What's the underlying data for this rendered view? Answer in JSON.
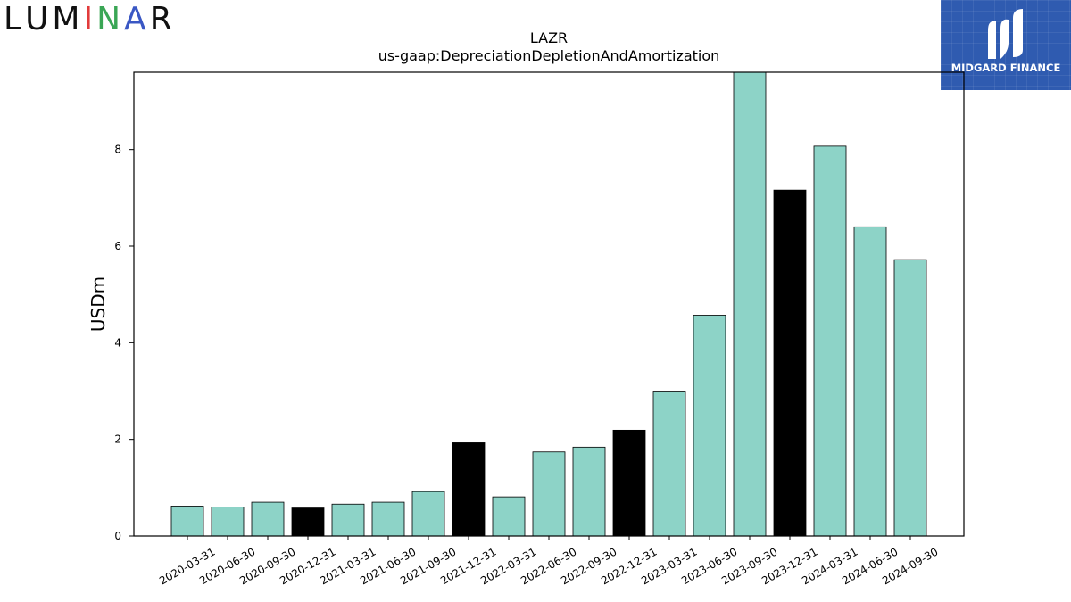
{
  "logos": {
    "left_text": "LUMINAR",
    "left_letter_colors": [
      "#111111",
      "#111111",
      "#111111",
      "#e23b3b",
      "#3aa655",
      "#3a57c4",
      "#111111"
    ],
    "right_text": "MIDGARD FINANCE",
    "right_bg": "#2f5bb0"
  },
  "chart_data": {
    "type": "bar",
    "title": "LAZR",
    "subtitle": "us-gaap:DepreciationDepletionAndAmortization",
    "xlabel": "",
    "ylabel": "USDm",
    "ylim": [
      0,
      9.6
    ],
    "yticks": [
      0,
      2,
      4,
      6,
      8
    ],
    "grid": false,
    "categories": [
      "2020-03-31",
      "2020-06-30",
      "2020-09-30",
      "2020-12-31",
      "2021-03-31",
      "2021-06-30",
      "2021-09-30",
      "2021-12-31",
      "2022-03-31",
      "2022-06-30",
      "2022-09-30",
      "2022-12-31",
      "2023-03-31",
      "2023-06-30",
      "2023-09-30",
      "2023-12-31",
      "2024-03-31",
      "2024-06-30",
      "2024-09-30"
    ],
    "values": [
      0.62,
      0.6,
      0.7,
      0.58,
      0.66,
      0.7,
      0.92,
      1.93,
      0.81,
      1.74,
      1.84,
      2.19,
      3.0,
      4.57,
      9.6,
      7.16,
      8.07,
      6.4,
      5.72
    ],
    "highlight_color": "#000000",
    "bar_color": "#8dd3c7",
    "highlighted": [
      "2020-12-31",
      "2021-12-31",
      "2022-12-31",
      "2023-12-31"
    ]
  }
}
